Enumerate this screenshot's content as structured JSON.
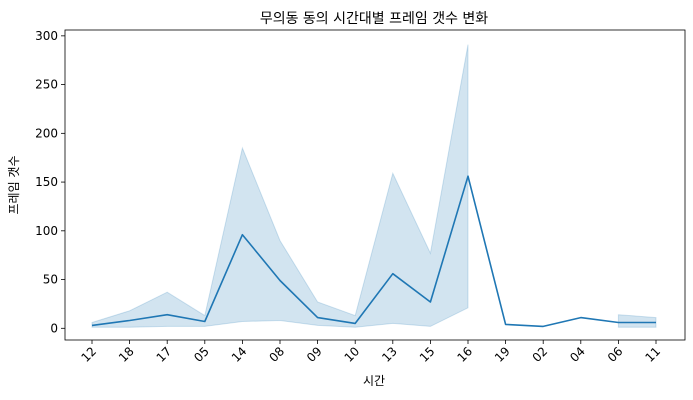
{
  "chart_data": {
    "type": "line",
    "title": "무의동 동의 시간대별 프레임 갯수 변화",
    "xlabel": "시간",
    "ylabel": "프레임 갯수",
    "categories": [
      "12",
      "18",
      "17",
      "05",
      "14",
      "08",
      "09",
      "10",
      "13",
      "15",
      "16",
      "19",
      "02",
      "04",
      "06",
      "11"
    ],
    "series": [
      {
        "values": [
          3,
          8,
          14,
          7,
          96,
          49,
          11,
          5,
          56,
          27,
          156,
          4,
          2,
          11,
          6,
          6
        ],
        "ci_lower": [
          1,
          1,
          2,
          2,
          7,
          8,
          3,
          1,
          5,
          2,
          21,
          null,
          null,
          null,
          1,
          1
        ],
        "ci_upper": [
          6,
          18,
          37,
          13,
          185,
          90,
          27,
          13,
          159,
          77,
          291,
          null,
          null,
          null,
          14,
          11
        ]
      }
    ],
    "ylim": [
      -12,
      306
    ],
    "yticks": [
      0,
      50,
      100,
      150,
      200,
      250,
      300
    ],
    "colors": {
      "line": "#1f77b4",
      "band": "#1f77b4"
    },
    "grid": false,
    "legend": "none"
  }
}
